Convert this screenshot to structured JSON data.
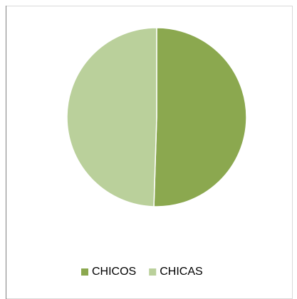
{
  "chart_data": {
    "type": "pie",
    "categories": [
      "CHICOS",
      "CHICAS"
    ],
    "values": [
      50.5,
      49.5
    ],
    "colors": [
      "#8ba84f",
      "#bad09b"
    ],
    "legend": "bottom"
  }
}
